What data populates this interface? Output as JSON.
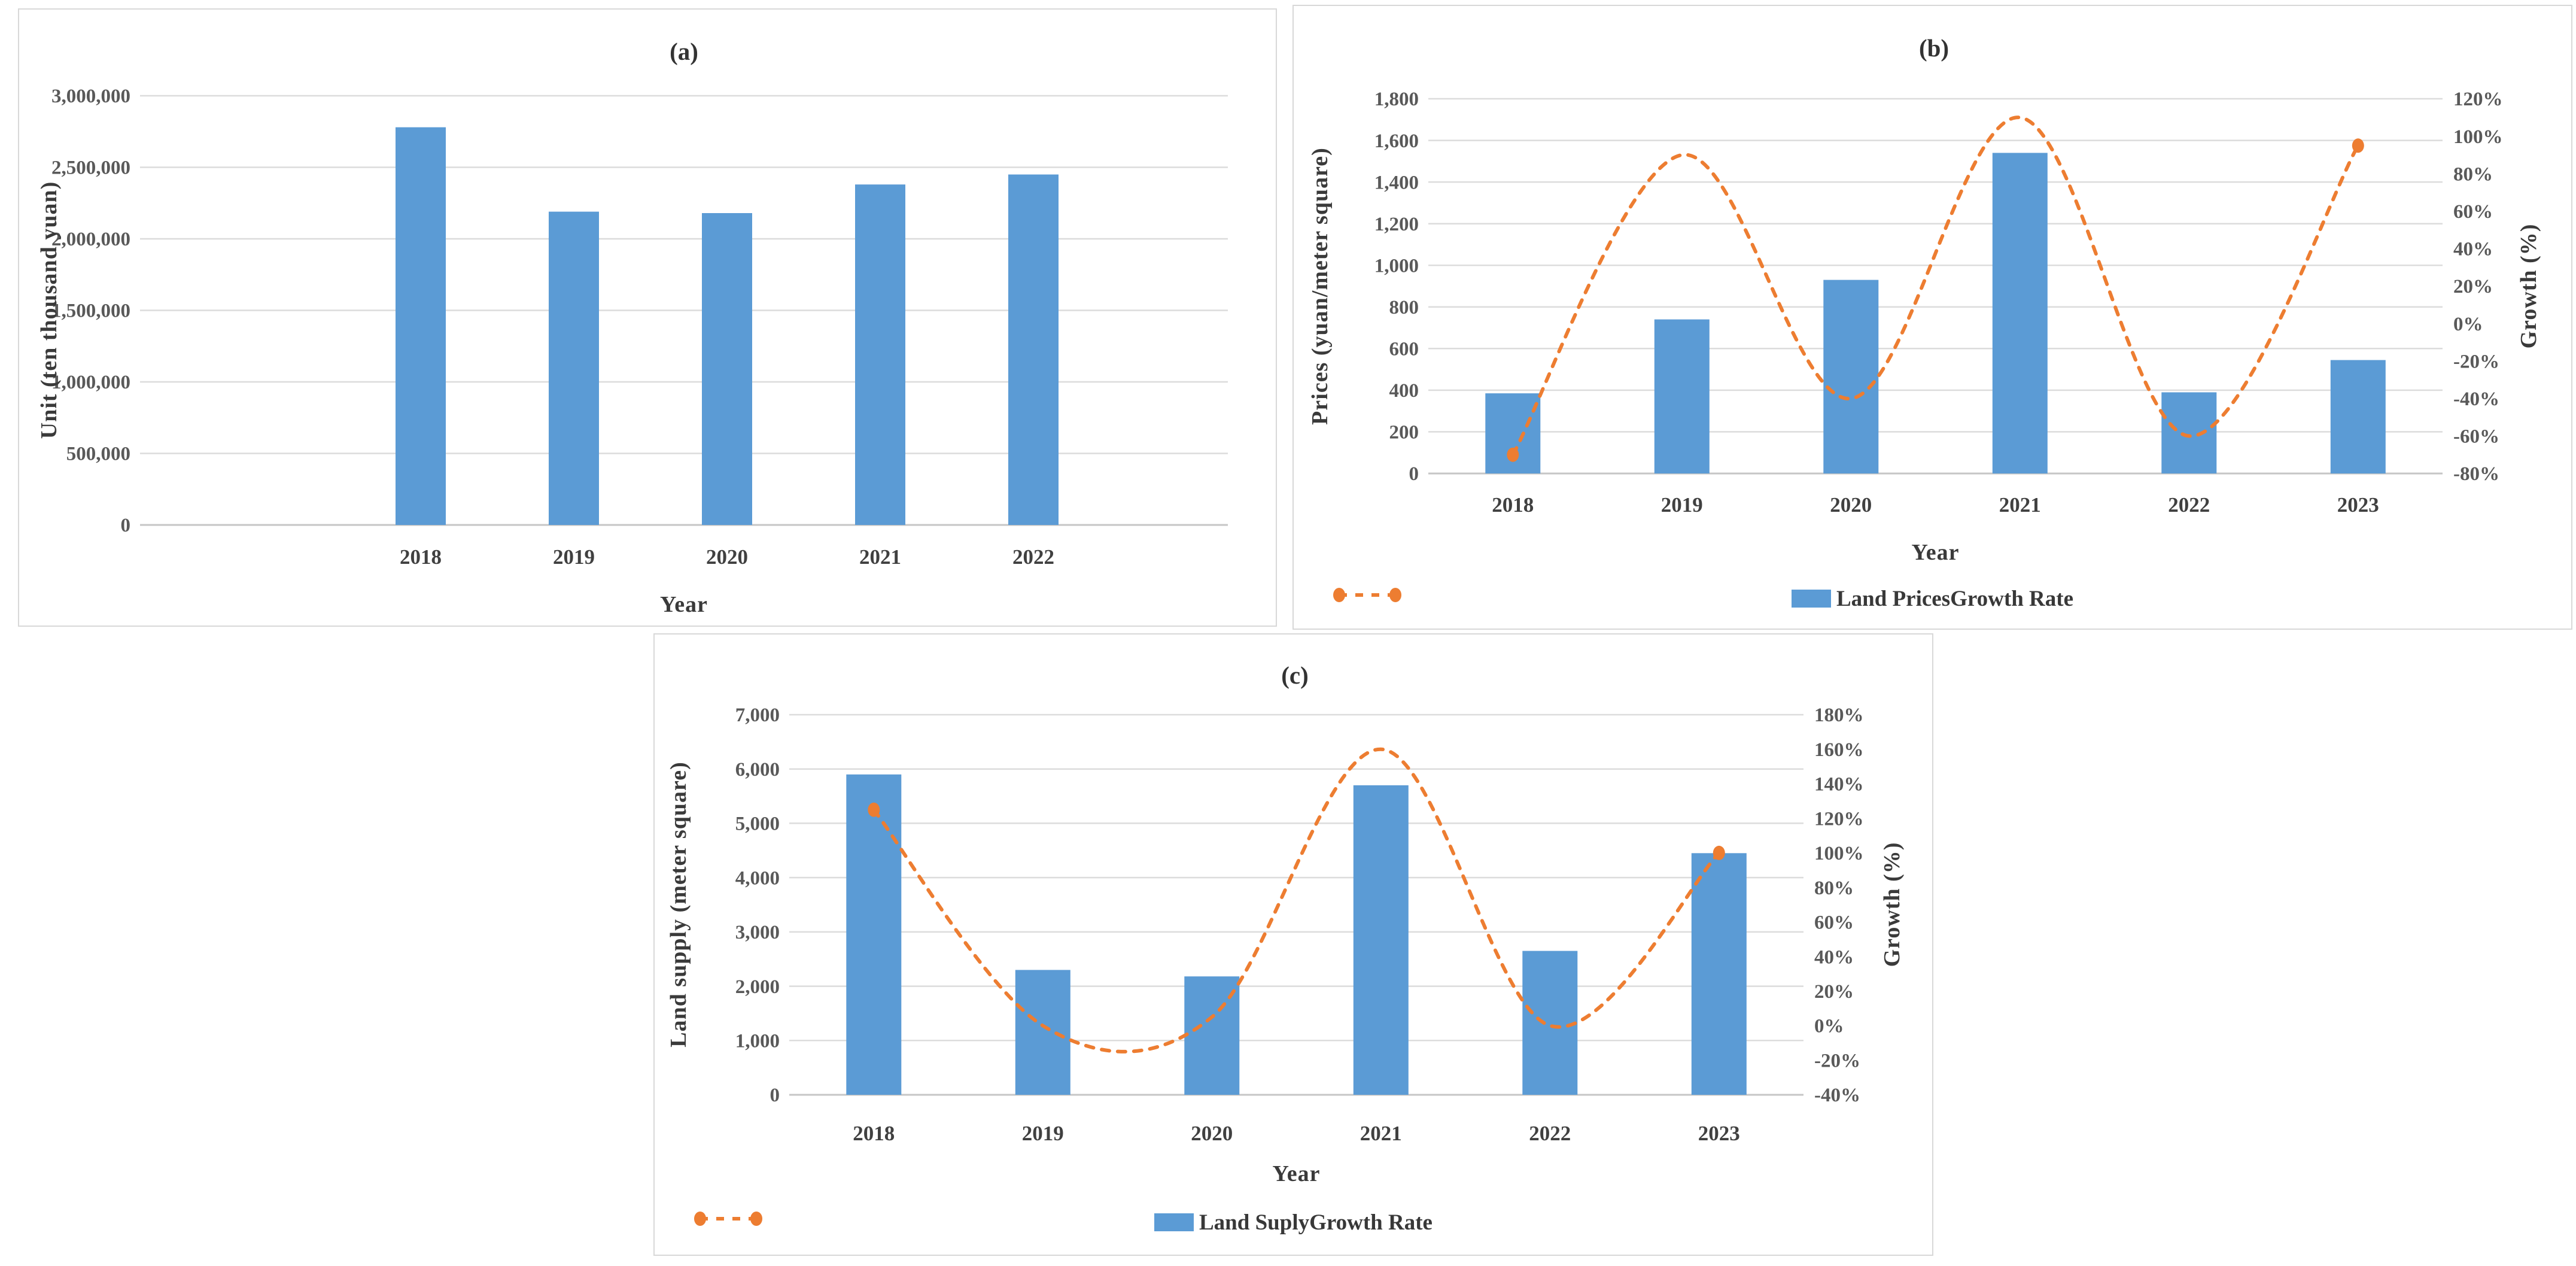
{
  "figure": {
    "background": "#ffffff",
    "bar_color": "#5b9bd5",
    "line_color": "#ed7d31",
    "gridline_color": "#dcdcdc",
    "axis_line_color": "#c6c6c6"
  },
  "chart_data": [
    {
      "id": "a",
      "type": "bar",
      "title": "(a)",
      "xlabel": "Year",
      "ylabel": "Unit (ten thousand yuan)",
      "categories": [
        "2018",
        "2019",
        "2020",
        "2021",
        "2022"
      ],
      "values": [
        2780000,
        2190000,
        2180000,
        2380000,
        2450000
      ],
      "ylim": [
        0,
        3000000
      ],
      "y_tick_labels": [
        "0",
        "500,000",
        "1,000,000",
        "1,500,000",
        "2,000,000",
        "2,500,000",
        "3,000,000"
      ],
      "grid": true,
      "legend": [],
      "bar_color": "#5b9bd5"
    },
    {
      "id": "b",
      "type": "combo",
      "title": "(b)",
      "xlabel": "Year",
      "ylabel_left": "Prices (yuan/meter square)",
      "ylabel_right": "Growth (%)",
      "categories": [
        "2018",
        "2019",
        "2020",
        "2021",
        "2022",
        "2023"
      ],
      "series": [
        {
          "name": "Land Prices",
          "type": "bar",
          "axis": "left",
          "color": "#5b9bd5",
          "values": [
            385,
            740,
            930,
            1540,
            390,
            545
          ]
        },
        {
          "name": "Growth Rate",
          "type": "line",
          "axis": "right",
          "color": "#ed7d31",
          "style": "dashed-smooth",
          "markers": "endpoints",
          "values": [
            -70,
            90,
            -40,
            110,
            -60,
            95
          ]
        }
      ],
      "ylim_left": [
        0,
        1800
      ],
      "ylim_right": [
        -80,
        120
      ],
      "left_tick_labels": [
        "0",
        "200",
        "400",
        "600",
        "800",
        "1,000",
        "1,200",
        "1,400",
        "1,600",
        "1,800"
      ],
      "right_tick_labels": [
        "-80%",
        "-60%",
        "-40%",
        "-20%",
        "0%",
        "20%",
        "40%",
        "60%",
        "80%",
        "100%",
        "120%"
      ],
      "grid": true,
      "legend": [
        "Land Prices",
        "Growth Rate"
      ],
      "legend_position": "bottom"
    },
    {
      "id": "c",
      "type": "combo",
      "title": "(c)",
      "xlabel": "Year",
      "ylabel_left": "Land supply (meter square)",
      "ylabel_right": "Growth (%)",
      "categories": [
        "2018",
        "2019",
        "2020",
        "2021",
        "2022",
        "2023"
      ],
      "series": [
        {
          "name": "Land Suply",
          "type": "bar",
          "axis": "left",
          "color": "#5b9bd5",
          "values": [
            5900,
            2300,
            2180,
            5700,
            2650,
            4450
          ]
        },
        {
          "name": "Growth Rate",
          "type": "line",
          "axis": "right",
          "color": "#ed7d31",
          "style": "dashed-smooth",
          "markers": "endpoints",
          "values": [
            125,
            0,
            5,
            160,
            0,
            100
          ]
        }
      ],
      "ylim_left": [
        0,
        7000
      ],
      "ylim_right": [
        -40,
        180
      ],
      "left_tick_labels": [
        "0",
        "1,000",
        "2,000",
        "3,000",
        "4,000",
        "5,000",
        "6,000",
        "7,000"
      ],
      "right_tick_labels": [
        "-40%",
        "-20%",
        "0%",
        "20%",
        "40%",
        "60%",
        "80%",
        "100%",
        "120%",
        "140%",
        "160%",
        "180%"
      ],
      "grid": true,
      "legend": [
        "Land Suply",
        "Growth Rate"
      ],
      "legend_position": "bottom"
    }
  ]
}
